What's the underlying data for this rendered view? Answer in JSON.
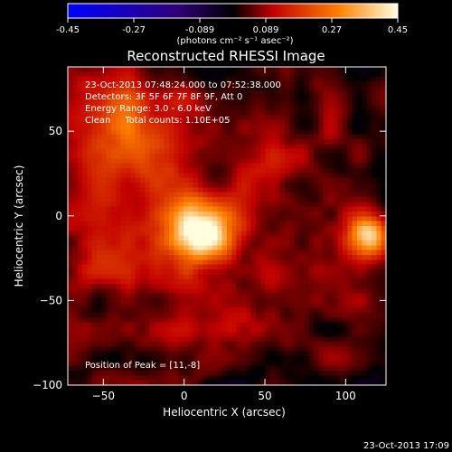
{
  "colorbar": {
    "ticks": [
      "-0.45",
      "-0.27",
      "-0.089",
      "0.089",
      "0.27",
      "0.45"
    ],
    "min": -0.45,
    "max": 0.45,
    "units_label": "(photons cm⁻² s⁻¹ asec⁻²)"
  },
  "chart_data": {
    "type": "heatmap",
    "title": "Reconstructed RHESSI Image",
    "xlabel": "Heliocentric X (arcsec)",
    "ylabel": "Heliocentric Y (arcsec)",
    "xlim": [
      -72,
      125
    ],
    "ylim": [
      -100,
      88
    ],
    "x_ticks": [
      -50,
      0,
      50,
      100
    ],
    "y_ticks": [
      50,
      0,
      -50,
      -100
    ],
    "x_tick_labels": [
      "−50",
      "0",
      "50",
      "100"
    ],
    "y_tick_labels": [
      "50",
      "0",
      "−50",
      "−100"
    ],
    "info_lines": [
      "23-Oct-2013 07:48:24.000 to 07:52:38.000",
      "Detectors: 3F 5F 6F 7F 8F 9F, Att 0",
      "Energy Range: 3.0 - 6.0 keV",
      "Clean     Total counts: 1.10E+05"
    ],
    "peak_label": "Position of Peak = [11,-8]",
    "peak_position": [
      11,
      -8
    ],
    "sources": [
      {
        "x": 11,
        "y": -8,
        "intensity": 0.45
      },
      {
        "x": 114,
        "y": -12,
        "intensity": 0.32
      },
      {
        "x": -20,
        "y": 45,
        "intensity": 0.16
      },
      {
        "x": -55,
        "y": 60,
        "intensity": 0.12
      },
      {
        "x": -50,
        "y": -20,
        "intensity": 0.11
      },
      {
        "x": 60,
        "y": 30,
        "intensity": 0.08
      },
      {
        "x": 40,
        "y": -45,
        "intensity": 0.07
      },
      {
        "x": -10,
        "y": -70,
        "intensity": 0.06
      }
    ]
  },
  "footer_timestamp": "23-Oct-2013 17:09"
}
